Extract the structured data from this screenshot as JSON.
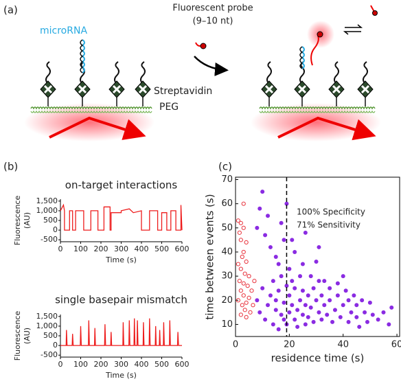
{
  "panel_labels": [
    "(a)",
    "(b)",
    "(c)"
  ],
  "diagram": {
    "microrna": "microRNA",
    "probe": "Fluorescent probe",
    "probe_length": "(9–10 nt)",
    "streptavidin": "Streptavidin",
    "peg": "PEG"
  },
  "chart_data": [
    {
      "type": "line",
      "title": "on-target interactions",
      "ylabel_lines": [
        "Fluorescence",
        "(AU)"
      ],
      "xlabel": "Time (s)",
      "color": "#ee1c1c",
      "x": [
        0,
        15,
        20,
        20,
        45,
        45,
        60,
        60,
        75,
        75,
        115,
        115,
        150,
        150,
        185,
        185,
        215,
        215,
        245,
        245,
        250,
        250,
        300,
        300,
        340,
        360,
        400,
        400,
        440,
        440,
        480,
        480,
        500,
        500,
        525,
        525,
        545,
        545,
        570,
        570,
        595,
        595,
        600
      ],
      "values": [
        1000,
        1300,
        1000,
        0,
        0,
        1000,
        1000,
        0,
        0,
        1000,
        1000,
        0,
        0,
        1000,
        1000,
        0,
        0,
        1200,
        1200,
        0,
        0,
        900,
        900,
        1000,
        1100,
        900,
        1000,
        0,
        0,
        1000,
        1000,
        0,
        0,
        900,
        900,
        0,
        0,
        1000,
        1000,
        0,
        0,
        1300,
        0
      ],
      "xlim": [
        0,
        600
      ],
      "ylim": [
        -600,
        1600
      ],
      "xticks": [
        0,
        100,
        200,
        300,
        400,
        500,
        600
      ],
      "yticks": [
        {
          "value": 1500,
          "label": "1,500"
        },
        {
          "value": 1000,
          "label": "1,000"
        },
        500,
        0,
        -500
      ]
    },
    {
      "type": "line",
      "title": "single basepair mismatch",
      "ylabel_lines": [
        "Fluorescence",
        "(AU)"
      ],
      "xlabel": "Time (s)",
      "color": "#ee1c1c",
      "x": [
        0,
        28,
        30,
        33,
        58,
        60,
        63,
        98,
        100,
        103,
        138,
        140,
        143,
        168,
        170,
        173,
        218,
        220,
        223,
        248,
        250,
        253,
        308,
        310,
        313,
        338,
        340,
        343,
        363,
        365,
        368,
        378,
        380,
        383,
        408,
        410,
        413,
        438,
        440,
        443,
        468,
        470,
        473,
        488,
        490,
        493,
        508,
        510,
        513,
        538,
        540,
        543,
        578,
        580,
        583,
        600
      ],
      "values": [
        0,
        0,
        800,
        0,
        0,
        600,
        0,
        0,
        1000,
        0,
        0,
        1300,
        0,
        0,
        900,
        0,
        0,
        1100,
        0,
        0,
        700,
        0,
        0,
        1200,
        0,
        0,
        1300,
        0,
        0,
        1400,
        0,
        0,
        1300,
        0,
        0,
        1200,
        0,
        0,
        1400,
        0,
        0,
        1000,
        0,
        0,
        800,
        0,
        0,
        1200,
        0,
        0,
        1300,
        0,
        0,
        700,
        0,
        0
      ],
      "xlim": [
        0,
        600
      ],
      "ylim": [
        -600,
        1600
      ],
      "xticks": [
        0,
        100,
        200,
        300,
        400,
        500,
        600
      ],
      "yticks": [
        {
          "value": 1500,
          "label": "1,500"
        },
        {
          "value": 1000,
          "label": "1,000"
        },
        500,
        0,
        -500
      ]
    },
    {
      "type": "scatter",
      "xlabel": "residence time (s)",
      "ylabel": "time between events (s)",
      "annotations": [
        "100% Specificity",
        "71% Sensitivity"
      ],
      "threshold": 19,
      "xlim": [
        0,
        61
      ],
      "ylim": [
        5,
        71
      ],
      "xticks": [
        0,
        20,
        40,
        60
      ],
      "yticks": [
        10,
        20,
        30,
        40,
        50,
        60,
        70
      ],
      "series": [
        {
          "color": "#e8323c",
          "marker": "open",
          "x": [
            1,
            2,
            1.5,
            3,
            2,
            4,
            3,
            2.5,
            4,
            1,
            2,
            3.5,
            5,
            1.5,
            3,
            4.5,
            2,
            3,
            5,
            1,
            4,
            2.5,
            3.5,
            5.5,
            2,
            4,
            6,
            7,
            6.5,
            3
          ],
          "values": [
            53,
            52,
            48,
            50,
            45,
            44,
            40,
            38,
            36,
            35,
            33,
            31,
            30,
            28,
            27,
            26,
            24,
            22,
            21,
            20,
            19,
            18,
            16,
            15,
            14,
            13,
            24,
            28,
            18,
            60
          ]
        },
        {
          "color": "#8a2be2",
          "marker": "filled",
          "x": [
            10,
            9,
            12,
            8,
            11,
            17,
            13,
            15,
            18,
            22,
            20,
            25,
            28,
            30,
            33,
            35,
            38,
            40,
            42,
            45,
            48,
            50,
            53,
            55,
            57,
            58,
            8,
            9,
            10,
            11,
            12,
            13,
            14,
            14,
            15,
            15,
            16,
            16,
            17,
            17,
            18,
            18,
            19,
            19,
            20,
            20,
            21,
            21,
            22,
            22,
            23,
            23,
            24,
            24,
            25,
            25,
            26,
            26,
            27,
            27,
            28,
            29,
            29,
            30,
            31,
            31,
            32,
            32,
            33,
            34,
            35,
            36,
            37,
            38,
            39,
            40,
            41,
            42,
            43,
            44,
            45,
            46,
            47,
            49,
            51,
            21,
            26,
            31,
            19,
            16
          ],
          "values": [
            65,
            58,
            55,
            50,
            47,
            52,
            42,
            38,
            45,
            40,
            33,
            35,
            30,
            36,
            28,
            25,
            22,
            30,
            20,
            18,
            15,
            19,
            12,
            15,
            10,
            17,
            20,
            15,
            25,
            12,
            18,
            22,
            10,
            28,
            16,
            20,
            8,
            24,
            14,
            30,
            12,
            19,
            26,
            10,
            15,
            22,
            18,
            28,
            12,
            25,
            16,
            9,
            20,
            30,
            14,
            24,
            18,
            10,
            22,
            13,
            17,
            25,
            11,
            20,
            15,
            28,
            12,
            22,
            18,
            14,
            20,
            11,
            16,
            27,
            13,
            18,
            24,
            11,
            15,
            22,
            13,
            9,
            20,
            11,
            14,
            45,
            48,
            42,
            60,
            35
          ]
        }
      ]
    }
  ]
}
